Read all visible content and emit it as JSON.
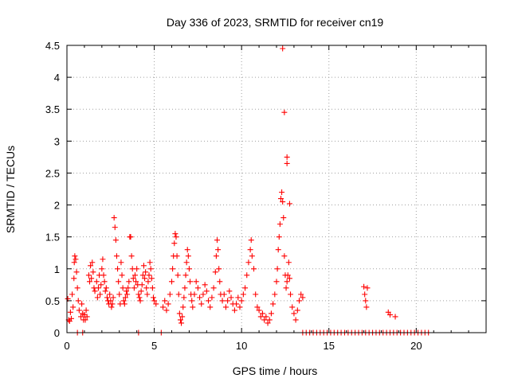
{
  "chart_data": {
    "type": "scatter",
    "title": "Day 336 of 2023, SRMTID for receiver cn19",
    "xlabel": "GPS time / hours",
    "ylabel": "SRMTID / TECUs",
    "xlim": [
      0,
      24
    ],
    "ylim": [
      0,
      4.5
    ],
    "x_ticks": [
      0,
      5,
      10,
      15,
      20
    ],
    "y_ticks": [
      0,
      0.5,
      1,
      1.5,
      2,
      2.5,
      3,
      3.5,
      4,
      4.5
    ],
    "grid": true,
    "marker": "+",
    "series": [
      {
        "name": "cn19",
        "color": "#ff0000",
        "points": [
          [
            0.05,
            0.53
          ],
          [
            0.1,
            0.2
          ],
          [
            0.15,
            0.18
          ],
          [
            0.2,
            0.32
          ],
          [
            0.25,
            0.22
          ],
          [
            0.3,
            0.6
          ],
          [
            0.35,
            0.4
          ],
          [
            0.4,
            0.85
          ],
          [
            0.42,
            1.1
          ],
          [
            0.45,
            1.2
          ],
          [
            0.5,
            1.15
          ],
          [
            0.55,
            0.95
          ],
          [
            0.6,
            0.7
          ],
          [
            0.65,
            0.5
          ],
          [
            0.7,
            0.35
          ],
          [
            0.8,
            0.25
          ],
          [
            0.85,
            0.45
          ],
          [
            0.9,
            0.3
          ],
          [
            0.95,
            0.2
          ],
          [
            1.0,
            0.28
          ],
          [
            1.05,
            0.2
          ],
          [
            1.1,
            0.35
          ],
          [
            1.15,
            0.25
          ],
          [
            1.25,
            0.9
          ],
          [
            1.3,
            0.8
          ],
          [
            1.35,
            1.05
          ],
          [
            1.4,
            0.85
          ],
          [
            1.45,
            1.1
          ],
          [
            1.5,
            0.95
          ],
          [
            1.55,
            0.7
          ],
          [
            1.6,
            0.65
          ],
          [
            1.7,
            0.8
          ],
          [
            1.75,
            0.55
          ],
          [
            1.8,
            0.7
          ],
          [
            1.85,
            0.9
          ],
          [
            1.9,
            0.6
          ],
          [
            1.95,
            0.75
          ],
          [
            2.0,
            1.0
          ],
          [
            2.05,
            1.15
          ],
          [
            2.1,
            0.9
          ],
          [
            2.15,
            0.8
          ],
          [
            2.2,
            0.65
          ],
          [
            2.25,
            0.7
          ],
          [
            2.3,
            0.55
          ],
          [
            2.35,
            0.5
          ],
          [
            2.4,
            0.45
          ],
          [
            2.45,
            0.6
          ],
          [
            2.5,
            0.5
          ],
          [
            2.55,
            0.4
          ],
          [
            2.6,
            0.45
          ],
          [
            2.65,
            0.55
          ],
          [
            2.7,
            1.8
          ],
          [
            2.75,
            1.65
          ],
          [
            2.8,
            1.45
          ],
          [
            2.85,
            1.2
          ],
          [
            2.9,
            1.0
          ],
          [
            2.95,
            0.8
          ],
          [
            3.0,
            0.6
          ],
          [
            3.05,
            0.45
          ],
          [
            3.1,
            1.1
          ],
          [
            3.15,
            0.9
          ],
          [
            3.2,
            0.7
          ],
          [
            3.25,
            0.5
          ],
          [
            3.3,
            0.45
          ],
          [
            3.35,
            0.55
          ],
          [
            3.4,
            0.65
          ],
          [
            3.45,
            0.6
          ],
          [
            3.5,
            0.7
          ],
          [
            3.55,
            0.8
          ],
          [
            3.6,
            1.5
          ],
          [
            3.65,
            1.5
          ],
          [
            3.7,
            1.2
          ],
          [
            3.75,
            1.0
          ],
          [
            3.8,
            0.85
          ],
          [
            3.85,
            0.7
          ],
          [
            3.9,
            0.9
          ],
          [
            3.95,
            0.8
          ],
          [
            4.0,
            1.0
          ],
          [
            4.05,
            0.75
          ],
          [
            4.1,
            0.6
          ],
          [
            4.15,
            0.55
          ],
          [
            4.2,
            0.5
          ],
          [
            4.25,
            0.65
          ],
          [
            4.3,
            0.75
          ],
          [
            4.35,
            0.9
          ],
          [
            4.4,
            1.05
          ],
          [
            4.45,
            0.85
          ],
          [
            4.5,
            0.95
          ],
          [
            4.55,
            0.7
          ],
          [
            4.6,
            0.6
          ],
          [
            4.65,
            0.8
          ],
          [
            4.7,
            0.9
          ],
          [
            4.75,
            1.1
          ],
          [
            4.8,
            1.0
          ],
          [
            4.85,
            0.85
          ],
          [
            4.9,
            0.7
          ],
          [
            4.95,
            0.55
          ],
          [
            5.0,
            0.5
          ],
          [
            5.1,
            0.45
          ],
          [
            5.5,
            0.4
          ],
          [
            5.6,
            0.5
          ],
          [
            5.7,
            0.35
          ],
          [
            5.8,
            0.45
          ],
          [
            5.9,
            0.6
          ],
          [
            6.0,
            0.8
          ],
          [
            6.05,
            1.0
          ],
          [
            6.1,
            1.2
          ],
          [
            6.15,
            1.4
          ],
          [
            6.2,
            1.55
          ],
          [
            6.25,
            1.5
          ],
          [
            6.3,
            1.2
          ],
          [
            6.35,
            0.9
          ],
          [
            6.4,
            0.6
          ],
          [
            6.45,
            0.3
          ],
          [
            6.5,
            0.2
          ],
          [
            6.55,
            0.15
          ],
          [
            6.6,
            0.25
          ],
          [
            6.65,
            0.4
          ],
          [
            6.7,
            0.55
          ],
          [
            6.75,
            0.7
          ],
          [
            6.8,
            0.9
          ],
          [
            6.85,
            1.1
          ],
          [
            6.9,
            1.3
          ],
          [
            6.95,
            1.2
          ],
          [
            7.0,
            1.0
          ],
          [
            7.05,
            0.8
          ],
          [
            7.1,
            0.6
          ],
          [
            7.15,
            0.5
          ],
          [
            7.2,
            0.4
          ],
          [
            7.3,
            0.6
          ],
          [
            7.4,
            0.8
          ],
          [
            7.5,
            0.7
          ],
          [
            7.6,
            0.55
          ],
          [
            7.7,
            0.45
          ],
          [
            7.8,
            0.6
          ],
          [
            7.9,
            0.75
          ],
          [
            8.0,
            0.65
          ],
          [
            8.1,
            0.5
          ],
          [
            8.2,
            0.4
          ],
          [
            8.3,
            0.55
          ],
          [
            8.4,
            0.7
          ],
          [
            8.5,
            0.95
          ],
          [
            8.55,
            1.2
          ],
          [
            8.6,
            1.45
          ],
          [
            8.65,
            1.3
          ],
          [
            8.7,
            1.0
          ],
          [
            8.75,
            0.8
          ],
          [
            8.8,
            0.6
          ],
          [
            8.9,
            0.5
          ],
          [
            9.0,
            0.6
          ],
          [
            9.1,
            0.4
          ],
          [
            9.2,
            0.5
          ],
          [
            9.3,
            0.65
          ],
          [
            9.4,
            0.55
          ],
          [
            9.5,
            0.45
          ],
          [
            9.6,
            0.35
          ],
          [
            9.7,
            0.45
          ],
          [
            9.8,
            0.55
          ],
          [
            9.9,
            0.4
          ],
          [
            10.0,
            0.5
          ],
          [
            10.1,
            0.6
          ],
          [
            10.2,
            0.7
          ],
          [
            10.3,
            0.9
          ],
          [
            10.4,
            1.1
          ],
          [
            10.5,
            1.3
          ],
          [
            10.55,
            1.45
          ],
          [
            10.6,
            1.2
          ],
          [
            10.7,
            1.0
          ],
          [
            10.8,
            0.6
          ],
          [
            10.9,
            0.4
          ],
          [
            11.0,
            0.35
          ],
          [
            11.1,
            0.25
          ],
          [
            11.2,
            0.3
          ],
          [
            11.3,
            0.2
          ],
          [
            11.4,
            0.25
          ],
          [
            11.5,
            0.15
          ],
          [
            11.6,
            0.2
          ],
          [
            11.7,
            0.3
          ],
          [
            11.8,
            0.45
          ],
          [
            11.9,
            0.6
          ],
          [
            12.0,
            0.8
          ],
          [
            12.05,
            1.0
          ],
          [
            12.1,
            1.3
          ],
          [
            12.15,
            1.5
          ],
          [
            12.2,
            1.7
          ],
          [
            12.25,
            2.1
          ],
          [
            12.3,
            2.2
          ],
          [
            12.35,
            2.05
          ],
          [
            12.4,
            1.8
          ],
          [
            12.45,
            1.2
          ],
          [
            12.5,
            0.9
          ],
          [
            12.55,
            0.7
          ],
          [
            12.6,
            0.8
          ],
          [
            12.65,
            0.9
          ],
          [
            12.7,
            1.1
          ],
          [
            12.75,
            0.85
          ],
          [
            12.8,
            0.6
          ],
          [
            12.9,
            0.4
          ],
          [
            13.0,
            0.3
          ],
          [
            13.1,
            0.2
          ],
          [
            13.2,
            0.35
          ],
          [
            13.3,
            0.5
          ],
          [
            13.4,
            0.6
          ],
          [
            13.5,
            0.55
          ],
          [
            12.35,
            4.45
          ],
          [
            12.45,
            3.45
          ],
          [
            12.6,
            2.75
          ],
          [
            12.6,
            2.65
          ],
          [
            12.75,
            2.02
          ],
          [
            17.0,
            0.72
          ],
          [
            17.05,
            0.6
          ],
          [
            17.1,
            0.5
          ],
          [
            17.15,
            0.4
          ],
          [
            17.2,
            0.7
          ],
          [
            18.4,
            0.32
          ],
          [
            18.5,
            0.28
          ],
          [
            18.8,
            0.25
          ],
          [
            0.6,
            0
          ],
          [
            0.9,
            0
          ],
          [
            4.1,
            0
          ],
          [
            5.4,
            0
          ],
          [
            13.5,
            0
          ],
          [
            13.7,
            0
          ],
          [
            13.9,
            0
          ],
          [
            14.1,
            0
          ],
          [
            14.3,
            0
          ],
          [
            14.5,
            0
          ],
          [
            14.7,
            0
          ],
          [
            14.9,
            0
          ],
          [
            15.1,
            0
          ],
          [
            15.3,
            0
          ],
          [
            15.5,
            0
          ],
          [
            15.7,
            0
          ],
          [
            15.9,
            0
          ],
          [
            16.1,
            0
          ],
          [
            16.3,
            0
          ],
          [
            16.5,
            0
          ],
          [
            16.7,
            0
          ],
          [
            16.9,
            0
          ],
          [
            17.1,
            0
          ],
          [
            17.3,
            0
          ],
          [
            17.5,
            0
          ],
          [
            17.7,
            0
          ],
          [
            17.9,
            0
          ],
          [
            18.1,
            0
          ],
          [
            18.3,
            0
          ],
          [
            18.5,
            0
          ],
          [
            18.7,
            0
          ],
          [
            18.9,
            0
          ],
          [
            19.1,
            0
          ],
          [
            19.3,
            0
          ],
          [
            19.5,
            0
          ],
          [
            19.7,
            0
          ],
          [
            19.9,
            0
          ],
          [
            20.1,
            0
          ],
          [
            20.3,
            0
          ],
          [
            20.5,
            0
          ],
          [
            20.7,
            0
          ]
        ]
      }
    ]
  }
}
